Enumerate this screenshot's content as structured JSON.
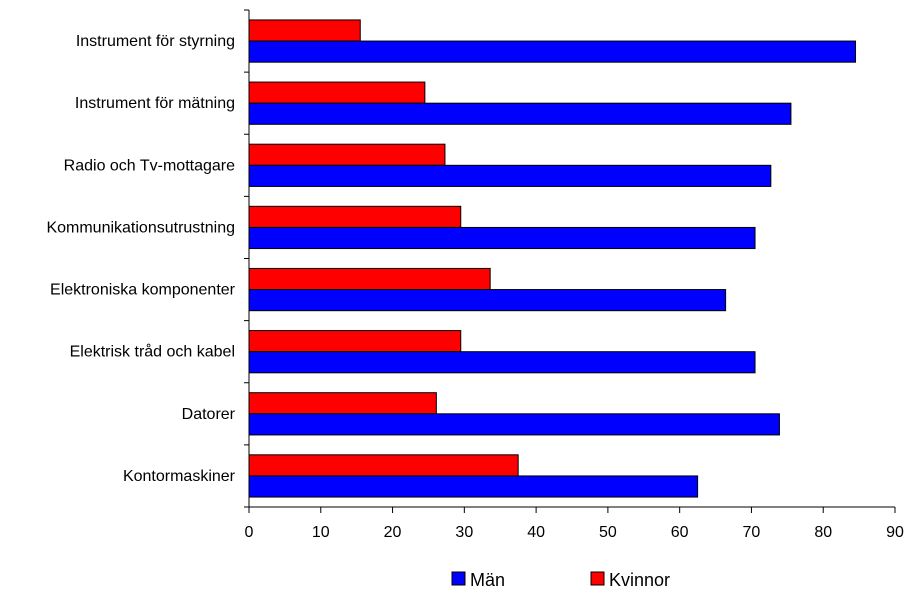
{
  "chart_data": {
    "type": "bar",
    "orientation": "horizontal",
    "categories": [
      "Instrument för styrning",
      "Instrument för mätning",
      "Radio och Tv-mottagare",
      "Kommunikationsutrustning",
      "Elektroniska komponenter",
      "Elektrisk tråd och kabel",
      "Datorer",
      "Kontormaskiner"
    ],
    "series": [
      {
        "name": "Kvinnor",
        "color": "#ff0000",
        "values": [
          15.5,
          24.5,
          27.3,
          29.5,
          33.6,
          29.5,
          26.1,
          37.5
        ]
      },
      {
        "name": "Män",
        "color": "#0000ff",
        "values": [
          84.5,
          75.5,
          72.7,
          70.5,
          66.4,
          70.5,
          73.9,
          62.5
        ]
      }
    ],
    "xlim": [
      0,
      90
    ],
    "xticks": [
      0,
      10,
      20,
      30,
      40,
      50,
      60,
      70,
      80,
      90
    ],
    "grid": false,
    "legend": {
      "placement": "bottom",
      "order": [
        "Män",
        "Kvinnor"
      ]
    }
  }
}
